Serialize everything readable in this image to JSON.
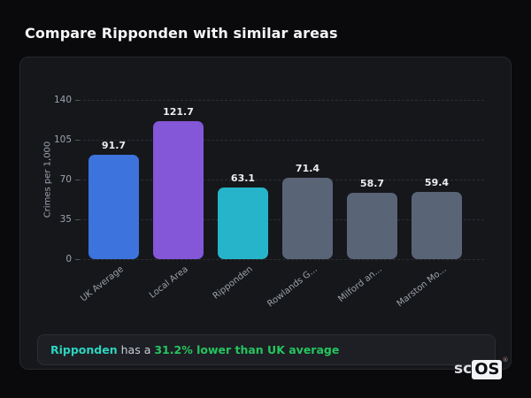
{
  "page": {
    "title": "Compare Ripponden with similar areas"
  },
  "chart_data": {
    "type": "bar",
    "categories": [
      "UK Average",
      "Local Area",
      "Ripponden",
      "Rowlands G...",
      "Milford an...",
      "Marston Mo..."
    ],
    "values": [
      91.7,
      121.7,
      63.1,
      71.4,
      58.7,
      59.4
    ],
    "value_labels": [
      "91.7",
      "121.7",
      "63.1",
      "71.4",
      "58.7",
      "59.4"
    ],
    "bar_colors": [
      "#3c73dd",
      "#8456d8",
      "#26b4ca",
      "#5a6477",
      "#5a6477",
      "#5a6477"
    ],
    "title": "",
    "xlabel": "",
    "ylabel": "Crimes per 1,000",
    "yticks": [
      0,
      35,
      70,
      105,
      140
    ],
    "ylim": [
      0,
      140
    ],
    "grid": "horizontal-dashed",
    "legend": "none",
    "x_tick_rotation": -38
  },
  "note": {
    "area": "Ripponden",
    "middle": "has a",
    "stat": "31.2% lower than UK average",
    "area_color": "#2dd4bf",
    "stat_color": "#25c55e"
  },
  "logo": {
    "prefix": "sc",
    "boxed": "OS",
    "registered": "®"
  }
}
